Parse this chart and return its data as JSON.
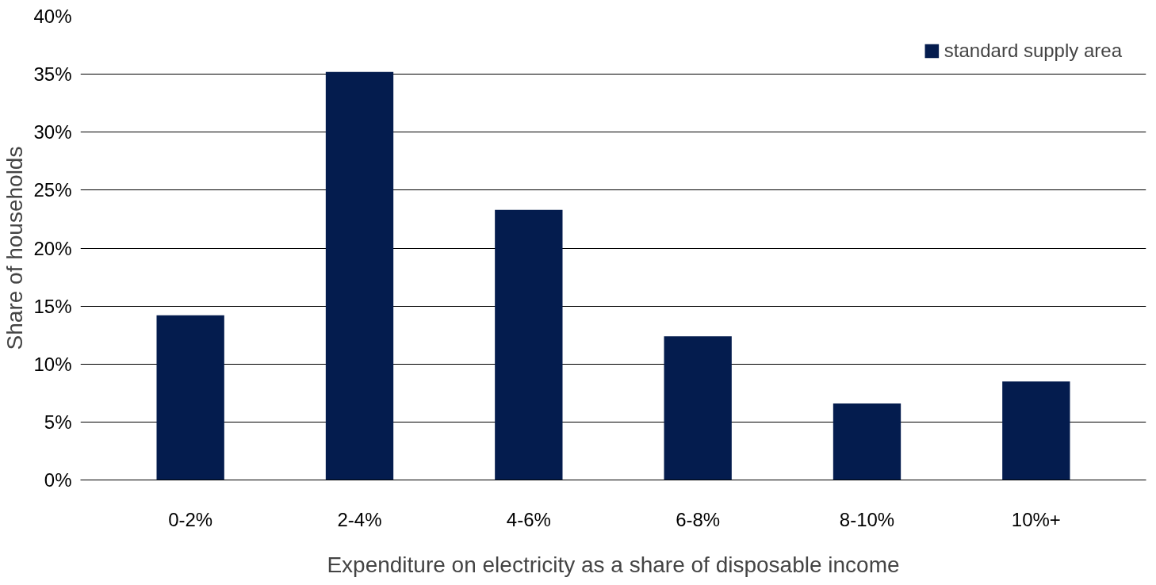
{
  "chart_data": {
    "type": "bar",
    "xlabel": "Expenditure on electricity as a share of disposable income",
    "ylabel": "Share of households",
    "categories": [
      "0-2%",
      "2-4%",
      "4-6%",
      "6-8%",
      "8-10%",
      "10%+"
    ],
    "series": [
      {
        "name": "standard supply area",
        "color": "#041c4e",
        "values": [
          14.2,
          35.2,
          23.3,
          12.4,
          6.6,
          8.5
        ]
      }
    ],
    "ylim": [
      0,
      40
    ],
    "yticks": [
      {
        "value": 0,
        "label": "0%"
      },
      {
        "value": 5,
        "label": "5%"
      },
      {
        "value": 10,
        "label": "10%"
      },
      {
        "value": 15,
        "label": "15%"
      },
      {
        "value": 20,
        "label": "20%"
      },
      {
        "value": 25,
        "label": "25%"
      },
      {
        "value": 30,
        "label": "30%"
      },
      {
        "value": 35,
        "label": "35%"
      },
      {
        "value": 40,
        "label": "40%"
      }
    ],
    "grid": "y",
    "legend": "top right"
  }
}
